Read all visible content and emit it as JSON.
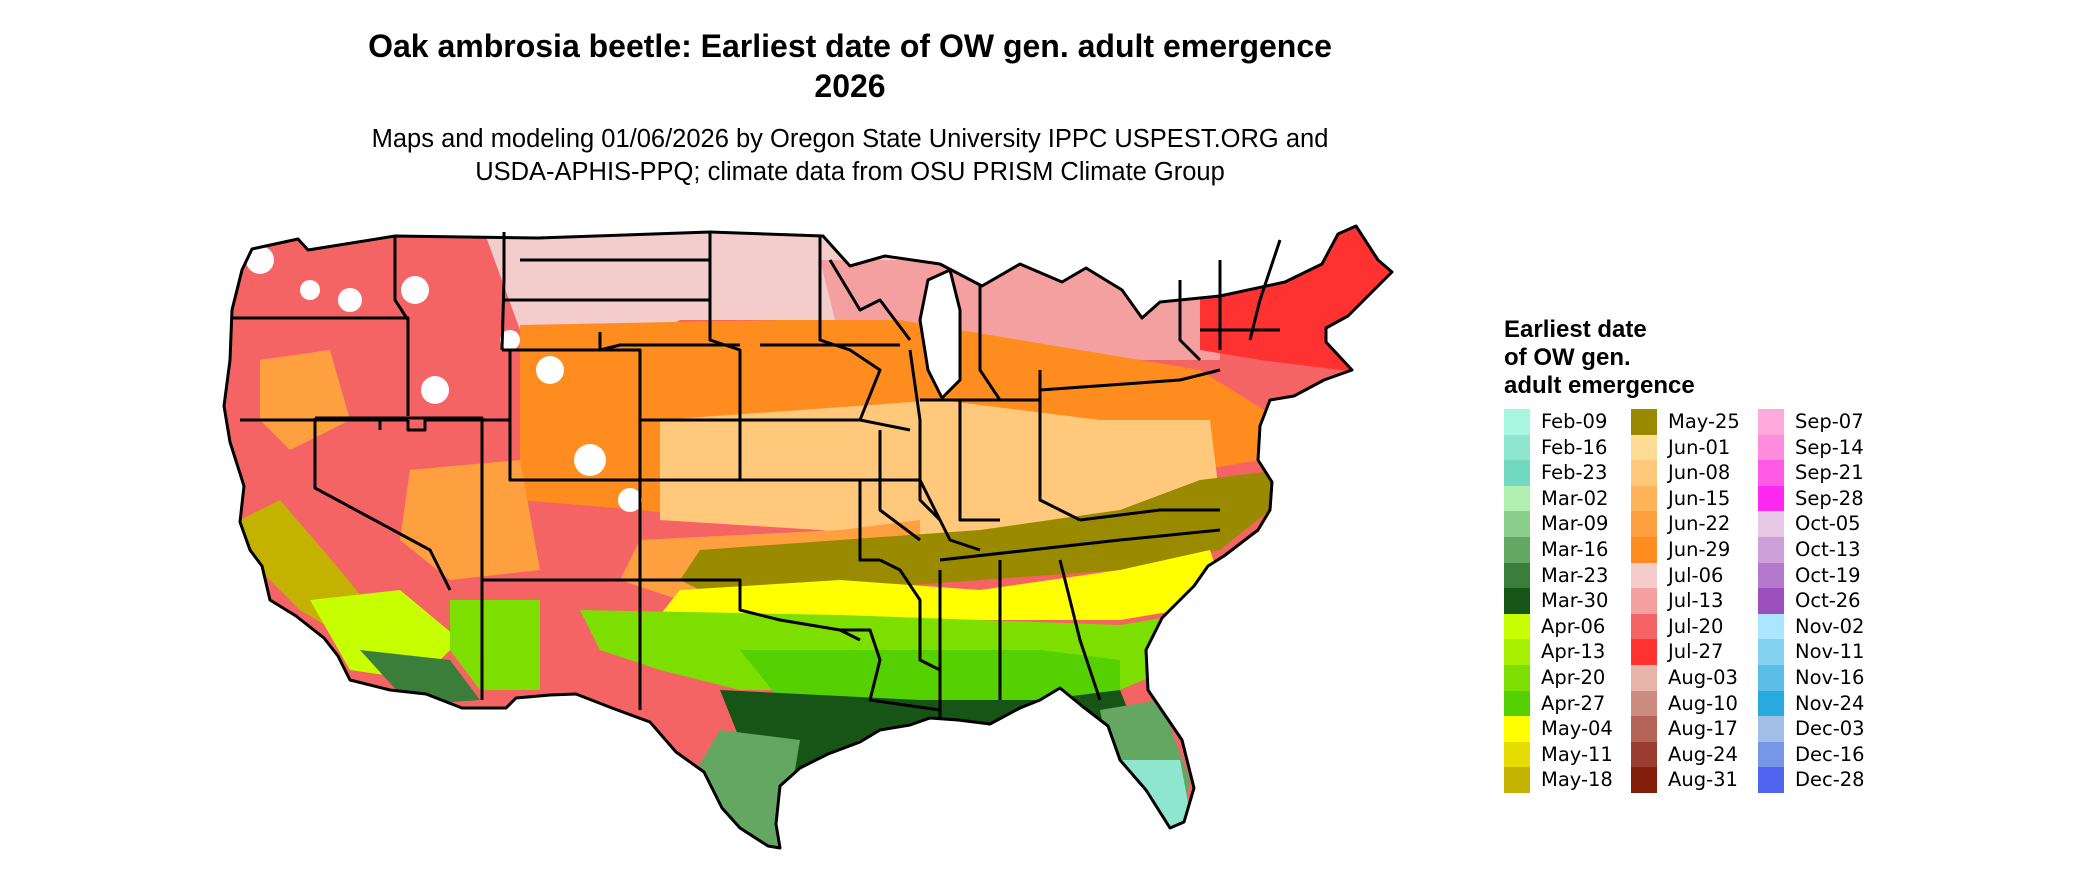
{
  "title_line1": "Oak ambrosia beetle: Earliest date of OW gen. adult emergence",
  "title_line2": "2026",
  "subtitle_line1": "Maps and modeling 01/06/2026 by Oregon State University IPPC USPEST.ORG and",
  "subtitle_line2": "USDA-APHIS-PPQ; climate data from OSU PRISM Climate Group",
  "legend": {
    "title_line1": "Earliest date",
    "title_line2": "of OW gen.",
    "title_line3": "adult emergence",
    "items": [
      {
        "label": "Feb-09",
        "color": "#a8f5e0"
      },
      {
        "label": "Feb-16",
        "color": "#8fe6cf"
      },
      {
        "label": "Feb-23",
        "color": "#72d8c0"
      },
      {
        "label": "Mar-02",
        "color": "#b2f0b2"
      },
      {
        "label": "Mar-09",
        "color": "#8ccf8c"
      },
      {
        "label": "Mar-16",
        "color": "#63a763"
      },
      {
        "label": "Mar-23",
        "color": "#3b7d3b"
      },
      {
        "label": "Mar-30",
        "color": "#165516"
      },
      {
        "label": "Apr-06",
        "color": "#c8ff00"
      },
      {
        "label": "Apr-13",
        "color": "#a8ef00"
      },
      {
        "label": "Apr-20",
        "color": "#7ddf00"
      },
      {
        "label": "Apr-27",
        "color": "#55d000"
      },
      {
        "label": "May-04",
        "color": "#ffff00"
      },
      {
        "label": "May-11",
        "color": "#e6dc00"
      },
      {
        "label": "May-18",
        "color": "#c4b200"
      },
      {
        "label": "May-25",
        "color": "#9a8a00"
      },
      {
        "label": "Jun-01",
        "color": "#ffdc96"
      },
      {
        "label": "Jun-08",
        "color": "#ffc87a"
      },
      {
        "label": "Jun-15",
        "color": "#ffb45a"
      },
      {
        "label": "Jun-22",
        "color": "#ffa040"
      },
      {
        "label": "Jun-29",
        "color": "#ff8c1e"
      },
      {
        "label": "Jul-06",
        "color": "#f5cccc"
      },
      {
        "label": "Jul-13",
        "color": "#f5a0a0"
      },
      {
        "label": "Jul-20",
        "color": "#f56464"
      },
      {
        "label": "Jul-27",
        "color": "#ff3232"
      },
      {
        "label": "Aug-03",
        "color": "#e6b4a8"
      },
      {
        "label": "Aug-10",
        "color": "#cd8c80"
      },
      {
        "label": "Aug-17",
        "color": "#b46458"
      },
      {
        "label": "Aug-24",
        "color": "#9b3c30"
      },
      {
        "label": "Aug-31",
        "color": "#821e0a"
      },
      {
        "label": "Sep-07",
        "color": "#ffaadc"
      },
      {
        "label": "Sep-14",
        "color": "#ff8cdc"
      },
      {
        "label": "Sep-21",
        "color": "#ff5ae6"
      },
      {
        "label": "Sep-28",
        "color": "#ff28f0"
      },
      {
        "label": "Oct-05",
        "color": "#e6c8e6"
      },
      {
        "label": "Oct-13",
        "color": "#cca0d8"
      },
      {
        "label": "Oct-19",
        "color": "#b478cc"
      },
      {
        "label": "Oct-26",
        "color": "#9b50be"
      },
      {
        "label": "Nov-02",
        "color": "#aae6ff"
      },
      {
        "label": "Nov-11",
        "color": "#82d2f0"
      },
      {
        "label": "Nov-16",
        "color": "#5abee6"
      },
      {
        "label": "Nov-24",
        "color": "#28aadc"
      },
      {
        "label": "Dec-03",
        "color": "#a0bee6"
      },
      {
        "label": "Dec-16",
        "color": "#7896e6"
      },
      {
        "label": "Dec-28",
        "color": "#5064f0"
      }
    ]
  },
  "map_colors": {
    "pnw_red": "#f56464",
    "light_pink": "#f5cccc",
    "pink": "#f5a0a0",
    "red": "#ff3232",
    "orange": "#ff8c1e",
    "orange2": "#ffa040",
    "peach": "#ffc87a",
    "light_peach": "#ffdc96",
    "olive": "#9a8a00",
    "olive2": "#c4b200",
    "yellow": "#ffff00",
    "yellow2": "#e6dc00",
    "lime": "#c8ff00",
    "green": "#7ddf00",
    "green2": "#55d000",
    "dark_green": "#165516",
    "mid_green": "#3b7d3b",
    "sage": "#63a763",
    "aqua": "#8fe6cf",
    "aqua2": "#72d8c0",
    "white": "#ffffff"
  }
}
